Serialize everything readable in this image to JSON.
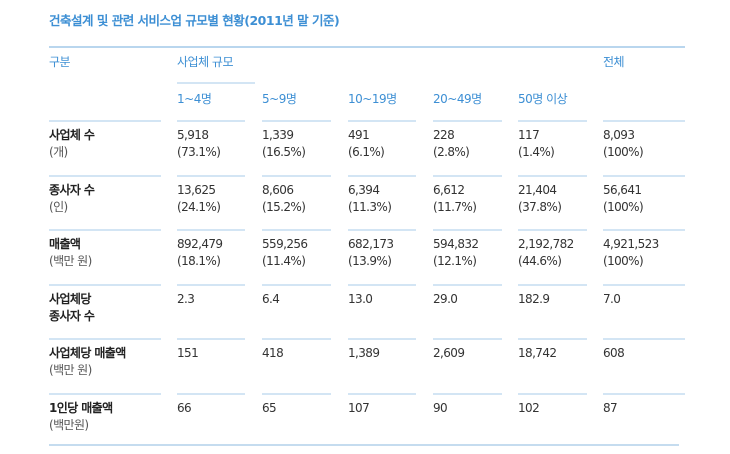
{
  "title": "건축설계 및 관련 서비스업 규모별 현황(2011년 말 기준)",
  "header": {
    "category": "구분",
    "group": "사업체 규모",
    "total": "전체",
    "sizes": [
      "1~4명",
      "5~9명",
      "10~19명",
      "20~49명",
      "50명 이상"
    ]
  },
  "rows": [
    {
      "label": "사업체 수",
      "unit": "(개)",
      "values": [
        [
          "5,918",
          "(73.1%)"
        ],
        [
          "1,339",
          "(16.5%)"
        ],
        [
          "491",
          "(6.1%)"
        ],
        [
          "228",
          "(2.8%)"
        ],
        [
          "117",
          "(1.4%)"
        ],
        [
          "8,093",
          "(100%)"
        ]
      ]
    },
    {
      "label": "종사자 수",
      "unit": "(인)",
      "values": [
        [
          "13,625",
          "(24.1%)"
        ],
        [
          "8,606",
          "(15.2%)"
        ],
        [
          "6,394",
          "(11.3%)"
        ],
        [
          "6,612",
          "(11.7%)"
        ],
        [
          "21,404",
          "(37.8%)"
        ],
        [
          "56,641",
          "(100%)"
        ]
      ]
    },
    {
      "label": "매출액",
      "unit": "(백만 원)",
      "values": [
        [
          "892,479",
          "(18.1%)"
        ],
        [
          "559,256",
          "(11.4%)"
        ],
        [
          "682,173",
          "(13.9%)"
        ],
        [
          "594,832",
          "(12.1%)"
        ],
        [
          "2,192,782",
          "(44.6%)"
        ],
        [
          "4,921,523",
          "(100%)"
        ]
      ]
    },
    {
      "label": "사업체당",
      "label2": "종사자 수",
      "values": [
        [
          "2.3"
        ],
        [
          "6.4"
        ],
        [
          "13.0"
        ],
        [
          "29.0"
        ],
        [
          "182.9"
        ],
        [
          "7.0"
        ]
      ]
    },
    {
      "label": "사업체당 매출액",
      "unit": "(백만 원)",
      "values": [
        [
          "151"
        ],
        [
          "418"
        ],
        [
          "1,389"
        ],
        [
          "2,609"
        ],
        [
          "18,742"
        ],
        [
          "608"
        ]
      ]
    },
    {
      "label": "1인당 매출액",
      "unit": "(백만원)",
      "values": [
        [
          "66"
        ],
        [
          "65"
        ],
        [
          "107"
        ],
        [
          "90"
        ],
        [
          "102"
        ],
        [
          "87"
        ]
      ]
    }
  ]
}
